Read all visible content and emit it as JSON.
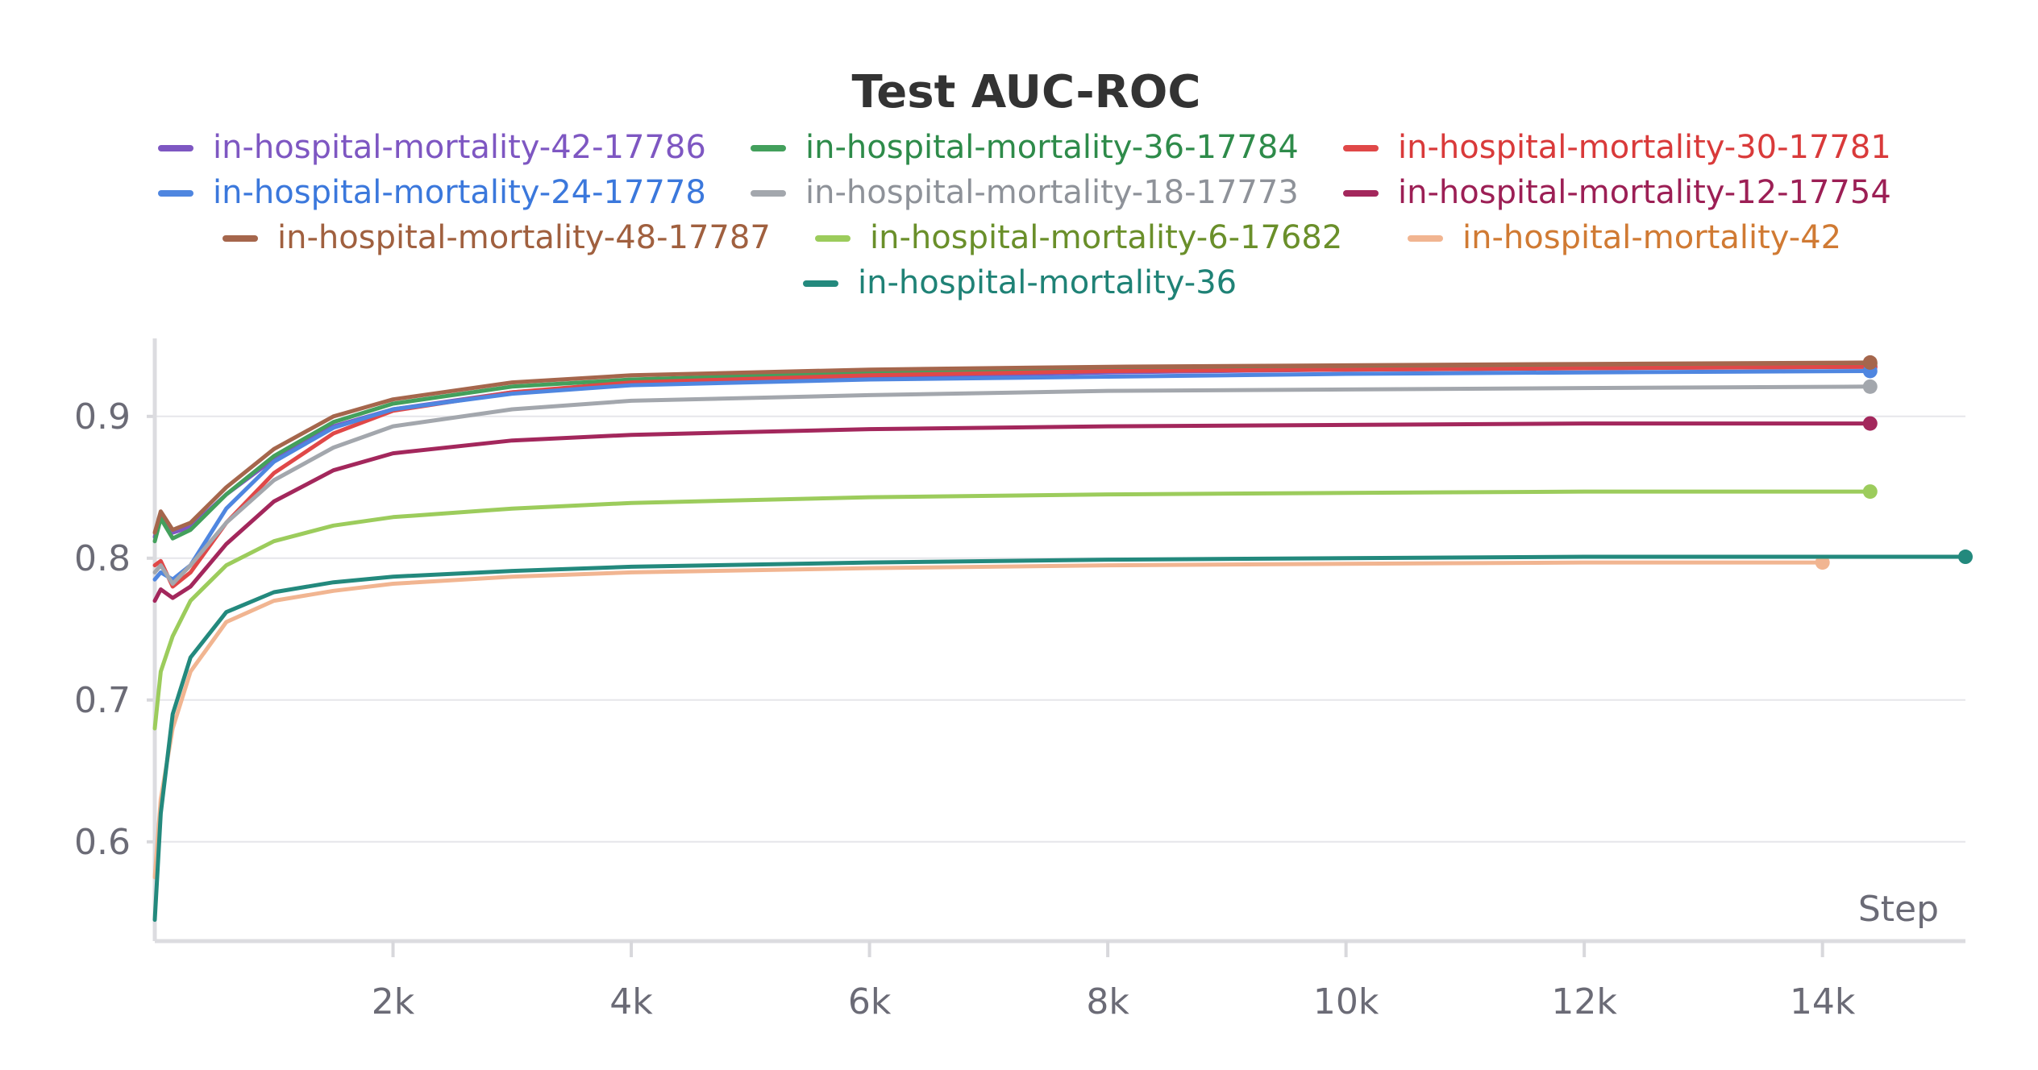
{
  "chart_data": {
    "type": "line",
    "title": "Test AUC-ROC",
    "xlabel": "Step",
    "ylabel": "",
    "xlim": [
      0,
      15200
    ],
    "ylim": [
      0.53,
      0.955
    ],
    "x_ticks": [
      2000,
      4000,
      6000,
      8000,
      10000,
      12000,
      14000
    ],
    "x_tick_labels": [
      "2k",
      "4k",
      "6k",
      "8k",
      "10k",
      "12k",
      "14k"
    ],
    "y_ticks": [
      0.6,
      0.7,
      0.8,
      0.9
    ],
    "y_tick_labels": [
      "0.6",
      "0.7",
      "0.8",
      "0.9"
    ],
    "grid": true,
    "legend_position": "top",
    "series": [
      {
        "name": "in-hospital-mortality-42-17786",
        "color": "#7e57c2",
        "label_color": "#7e57c2",
        "points": [
          [
            0,
            0.815
          ],
          [
            50,
            0.83
          ],
          [
            150,
            0.818
          ],
          [
            300,
            0.822
          ],
          [
            600,
            0.845
          ],
          [
            1000,
            0.87
          ],
          [
            1500,
            0.893
          ],
          [
            2000,
            0.905
          ],
          [
            3000,
            0.917
          ],
          [
            4000,
            0.923
          ],
          [
            6000,
            0.928
          ],
          [
            8000,
            0.931
          ],
          [
            10000,
            0.933
          ],
          [
            12000,
            0.934
          ],
          [
            14400,
            0.935
          ]
        ]
      },
      {
        "name": "in-hospital-mortality-36-17784",
        "color": "#43a05c",
        "label_color": "#2e8b4a",
        "points": [
          [
            0,
            0.812
          ],
          [
            50,
            0.828
          ],
          [
            150,
            0.814
          ],
          [
            300,
            0.82
          ],
          [
            600,
            0.845
          ],
          [
            1000,
            0.872
          ],
          [
            1500,
            0.896
          ],
          [
            2000,
            0.909
          ],
          [
            3000,
            0.921
          ],
          [
            4000,
            0.926
          ],
          [
            6000,
            0.931
          ],
          [
            8000,
            0.933
          ],
          [
            10000,
            0.935
          ],
          [
            12000,
            0.936
          ],
          [
            14400,
            0.937
          ]
        ]
      },
      {
        "name": "in-hospital-mortality-30-17781",
        "color": "#e04848",
        "label_color": "#d93a3a",
        "points": [
          [
            0,
            0.795
          ],
          [
            50,
            0.798
          ],
          [
            150,
            0.78
          ],
          [
            300,
            0.79
          ],
          [
            600,
            0.825
          ],
          [
            1000,
            0.86
          ],
          [
            1500,
            0.888
          ],
          [
            2000,
            0.904
          ],
          [
            3000,
            0.917
          ],
          [
            4000,
            0.924
          ],
          [
            6000,
            0.929
          ],
          [
            8000,
            0.932
          ],
          [
            10000,
            0.933
          ],
          [
            12000,
            0.934
          ],
          [
            14400,
            0.935
          ]
        ]
      },
      {
        "name": "in-hospital-mortality-24-17778",
        "color": "#4f86e0",
        "label_color": "#3b78dc",
        "points": [
          [
            0,
            0.785
          ],
          [
            50,
            0.79
          ],
          [
            150,
            0.785
          ],
          [
            300,
            0.795
          ],
          [
            600,
            0.835
          ],
          [
            1000,
            0.868
          ],
          [
            1500,
            0.892
          ],
          [
            2000,
            0.905
          ],
          [
            3000,
            0.916
          ],
          [
            4000,
            0.922
          ],
          [
            6000,
            0.926
          ],
          [
            8000,
            0.928
          ],
          [
            10000,
            0.93
          ],
          [
            12000,
            0.931
          ],
          [
            14400,
            0.932
          ]
        ]
      },
      {
        "name": "in-hospital-mortality-18-17773",
        "color": "#a3a7ad",
        "label_color": "#8e9299",
        "points": [
          [
            0,
            0.79
          ],
          [
            50,
            0.795
          ],
          [
            150,
            0.782
          ],
          [
            300,
            0.795
          ],
          [
            600,
            0.825
          ],
          [
            1000,
            0.855
          ],
          [
            1500,
            0.878
          ],
          [
            2000,
            0.893
          ],
          [
            3000,
            0.905
          ],
          [
            4000,
            0.911
          ],
          [
            6000,
            0.915
          ],
          [
            8000,
            0.918
          ],
          [
            10000,
            0.919
          ],
          [
            12000,
            0.92
          ],
          [
            14400,
            0.921
          ]
        ]
      },
      {
        "name": "in-hospital-mortality-12-17754",
        "color": "#a3275c",
        "label_color": "#9c1f55",
        "points": [
          [
            0,
            0.77
          ],
          [
            50,
            0.778
          ],
          [
            150,
            0.772
          ],
          [
            300,
            0.78
          ],
          [
            600,
            0.81
          ],
          [
            1000,
            0.84
          ],
          [
            1500,
            0.862
          ],
          [
            2000,
            0.874
          ],
          [
            3000,
            0.883
          ],
          [
            4000,
            0.887
          ],
          [
            6000,
            0.891
          ],
          [
            8000,
            0.893
          ],
          [
            10000,
            0.894
          ],
          [
            12000,
            0.895
          ],
          [
            14400,
            0.895
          ]
        ]
      },
      {
        "name": "in-hospital-mortality-48-17787",
        "color": "#a5664c",
        "label_color": "#a0603f",
        "points": [
          [
            0,
            0.818
          ],
          [
            50,
            0.833
          ],
          [
            150,
            0.82
          ],
          [
            300,
            0.825
          ],
          [
            600,
            0.85
          ],
          [
            1000,
            0.877
          ],
          [
            1500,
            0.9
          ],
          [
            2000,
            0.912
          ],
          [
            3000,
            0.924
          ],
          [
            4000,
            0.929
          ],
          [
            6000,
            0.933
          ],
          [
            8000,
            0.935
          ],
          [
            10000,
            0.936
          ],
          [
            12000,
            0.937
          ],
          [
            14400,
            0.938
          ]
        ]
      },
      {
        "name": "in-hospital-mortality-6-17682",
        "color": "#9ccc5c",
        "label_color": "#6a8f2a",
        "points": [
          [
            0,
            0.68
          ],
          [
            50,
            0.72
          ],
          [
            150,
            0.745
          ],
          [
            300,
            0.77
          ],
          [
            600,
            0.795
          ],
          [
            1000,
            0.812
          ],
          [
            1500,
            0.823
          ],
          [
            2000,
            0.829
          ],
          [
            3000,
            0.835
          ],
          [
            4000,
            0.839
          ],
          [
            6000,
            0.843
          ],
          [
            8000,
            0.845
          ],
          [
            10000,
            0.846
          ],
          [
            12000,
            0.847
          ],
          [
            14400,
            0.847
          ]
        ]
      },
      {
        "name": "in-hospital-mortality-42",
        "color": "#f1b591",
        "label_color": "#d07a33",
        "points": [
          [
            0,
            0.575
          ],
          [
            50,
            0.63
          ],
          [
            150,
            0.68
          ],
          [
            300,
            0.72
          ],
          [
            600,
            0.755
          ],
          [
            1000,
            0.77
          ],
          [
            1500,
            0.777
          ],
          [
            2000,
            0.782
          ],
          [
            3000,
            0.787
          ],
          [
            4000,
            0.79
          ],
          [
            6000,
            0.793
          ],
          [
            8000,
            0.795
          ],
          [
            10000,
            0.796
          ],
          [
            12000,
            0.797
          ],
          [
            14000,
            0.797
          ]
        ]
      },
      {
        "name": "in-hospital-mortality-36",
        "color": "#23897d",
        "label_color": "#1f8276",
        "points": [
          [
            0,
            0.545
          ],
          [
            50,
            0.62
          ],
          [
            150,
            0.69
          ],
          [
            300,
            0.73
          ],
          [
            600,
            0.762
          ],
          [
            1000,
            0.776
          ],
          [
            1500,
            0.783
          ],
          [
            2000,
            0.787
          ],
          [
            3000,
            0.791
          ],
          [
            4000,
            0.794
          ],
          [
            6000,
            0.797
          ],
          [
            8000,
            0.799
          ],
          [
            10000,
            0.8
          ],
          [
            12000,
            0.801
          ],
          [
            14000,
            0.801
          ],
          [
            15200,
            0.801
          ]
        ]
      }
    ]
  }
}
